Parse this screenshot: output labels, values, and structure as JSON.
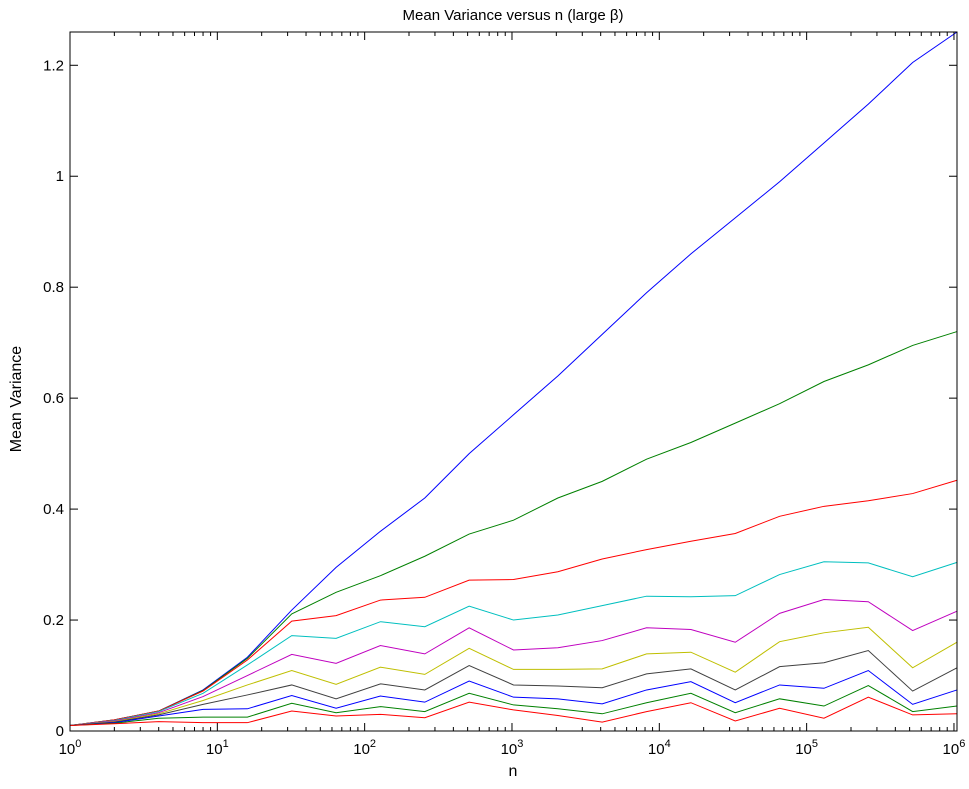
{
  "chart_data": {
    "type": "line",
    "title": "Mean Variance versus n (large β)",
    "xlabel": "n",
    "ylabel": "Mean Variance",
    "xscale": "log",
    "xlim": [
      1,
      1048576
    ],
    "ylim": [
      0,
      1.26
    ],
    "x_ticks": [
      {
        "value": 1,
        "base": "10",
        "exp": "0"
      },
      {
        "value": 10,
        "base": "10",
        "exp": "1"
      },
      {
        "value": 100,
        "base": "10",
        "exp": "2"
      },
      {
        "value": 1000,
        "base": "10",
        "exp": "3"
      },
      {
        "value": 10000,
        "base": "10",
        "exp": "4"
      },
      {
        "value": 100000,
        "base": "10",
        "exp": "5"
      },
      {
        "value": 1000000,
        "base": "10",
        "exp": "6"
      }
    ],
    "y_ticks": [
      {
        "value": 0,
        "label": "0"
      },
      {
        "value": 0.2,
        "label": "0.2"
      },
      {
        "value": 0.4,
        "label": "0.4"
      },
      {
        "value": 0.6,
        "label": "0.6"
      },
      {
        "value": 0.8,
        "label": "0.8"
      },
      {
        "value": 1.0,
        "label": "1"
      },
      {
        "value": 1.2,
        "label": "1.2"
      }
    ],
    "grid": false,
    "legend": "none",
    "x": [
      1,
      2,
      4,
      8,
      16,
      32,
      64,
      128,
      256,
      512,
      1024,
      2048,
      4096,
      8192,
      16384,
      32768,
      65536,
      131072,
      262144,
      524288,
      1048576
    ],
    "series": [
      {
        "color": "#0000ff",
        "values": [
          0.01,
          0.02,
          0.036,
          0.074,
          0.133,
          0.218,
          0.295,
          0.36,
          0.42,
          0.5,
          0.57,
          0.64,
          0.715,
          0.79,
          0.86,
          0.925,
          0.99,
          1.06,
          1.13,
          1.205,
          1.26
        ]
      },
      {
        "color": "#008000",
        "values": [
          0.01,
          0.02,
          0.036,
          0.073,
          0.131,
          0.211,
          0.25,
          0.28,
          0.315,
          0.355,
          0.38,
          0.42,
          0.45,
          0.49,
          0.52,
          0.555,
          0.59,
          0.63,
          0.66,
          0.695,
          0.72
        ]
      },
      {
        "color": "#ff0000",
        "values": [
          0.01,
          0.02,
          0.036,
          0.072,
          0.128,
          0.198,
          0.208,
          0.236,
          0.241,
          0.272,
          0.273,
          0.287,
          0.31,
          0.327,
          0.342,
          0.356,
          0.387,
          0.405,
          0.415,
          0.428,
          0.452
        ]
      },
      {
        "color": "#00bfbf",
        "values": [
          0.01,
          0.019,
          0.035,
          0.068,
          0.119,
          0.172,
          0.167,
          0.197,
          0.188,
          0.225,
          0.2,
          0.209,
          0.226,
          0.243,
          0.242,
          0.244,
          0.282,
          0.305,
          0.303,
          0.278,
          0.304
        ]
      },
      {
        "color": "#bf00bf",
        "values": [
          0.01,
          0.018,
          0.033,
          0.062,
          0.1,
          0.138,
          0.122,
          0.154,
          0.139,
          0.186,
          0.146,
          0.15,
          0.163,
          0.186,
          0.183,
          0.16,
          0.212,
          0.237,
          0.233,
          0.181,
          0.216
        ]
      },
      {
        "color": "#bfbf00",
        "values": [
          0.01,
          0.017,
          0.031,
          0.055,
          0.083,
          0.109,
          0.084,
          0.115,
          0.102,
          0.149,
          0.111,
          0.111,
          0.112,
          0.139,
          0.142,
          0.106,
          0.161,
          0.177,
          0.187,
          0.114,
          0.16
        ]
      },
      {
        "color": "#404040",
        "values": [
          0.01,
          0.016,
          0.029,
          0.048,
          0.065,
          0.083,
          0.058,
          0.085,
          0.074,
          0.118,
          0.083,
          0.081,
          0.078,
          0.103,
          0.112,
          0.074,
          0.116,
          0.123,
          0.145,
          0.072,
          0.114
        ]
      },
      {
        "color": "#0000ff",
        "values": [
          0.01,
          0.015,
          0.027,
          0.039,
          0.04,
          0.064,
          0.041,
          0.063,
          0.052,
          0.09,
          0.061,
          0.058,
          0.049,
          0.074,
          0.089,
          0.051,
          0.083,
          0.077,
          0.109,
          0.048,
          0.074
        ]
      },
      {
        "color": "#008000",
        "values": [
          0.01,
          0.014,
          0.023,
          0.025,
          0.025,
          0.05,
          0.033,
          0.044,
          0.035,
          0.068,
          0.047,
          0.04,
          0.031,
          0.051,
          0.068,
          0.033,
          0.058,
          0.045,
          0.082,
          0.035,
          0.045
        ]
      },
      {
        "color": "#ff0000",
        "values": [
          0.01,
          0.013,
          0.017,
          0.015,
          0.015,
          0.036,
          0.027,
          0.03,
          0.024,
          0.052,
          0.038,
          0.028,
          0.016,
          0.035,
          0.051,
          0.018,
          0.041,
          0.023,
          0.061,
          0.029,
          0.031
        ]
      }
    ]
  }
}
